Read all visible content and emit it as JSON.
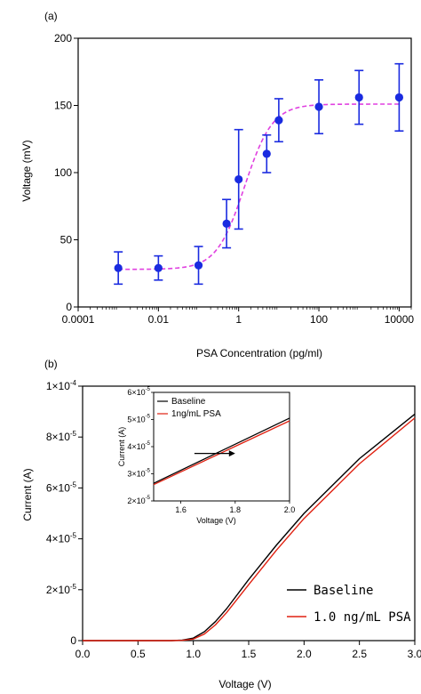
{
  "chart_data": [
    {
      "panel": "(a)",
      "type": "scatter",
      "xlabel": "PSA Concentration (pg/ml)",
      "ylabel": "Voltage (mV)",
      "xscale": "log",
      "xlim": [
        0.0001,
        20000
      ],
      "ylim": [
        0,
        200
      ],
      "xticks": [
        "0.0001",
        "0.01",
        "1",
        "100",
        "10000"
      ],
      "yticks": [
        "0",
        "50",
        "100",
        "150",
        "200"
      ],
      "grid": false,
      "colors": {
        "points": "#1a2be0",
        "fit": "#e040e0"
      },
      "series": [
        {
          "marker": "circle",
          "x": [
            0.001,
            0.01,
            0.1,
            0.5,
            1,
            5,
            10,
            100,
            1000,
            10000
          ],
          "y": [
            29,
            29,
            31,
            62,
            95,
            114,
            139,
            149,
            156,
            156
          ],
          "yerr": [
            12,
            9,
            14,
            18,
            37,
            14,
            16,
            20,
            20,
            25
          ]
        },
        {
          "style": "dashed",
          "fit": "sigmoid",
          "bottom": 28,
          "top": 151,
          "ec50": 1.4,
          "hill": 1.25
        }
      ]
    },
    {
      "panel": "(b)",
      "type": "line",
      "xlabel": "Voltage (V)",
      "ylabel": "Current (A)",
      "xlim": [
        0,
        3.0
      ],
      "ylim": [
        0,
        0.0001
      ],
      "xticks": [
        "0.0",
        "0.5",
        "1.0",
        "1.5",
        "2.0",
        "2.5",
        "3.0"
      ],
      "yticks": [
        "0",
        "2×10",
        "4×10",
        "6×10",
        "8×10",
        "1×10"
      ],
      "ytick_exp": "-5",
      "ytick_exp_top": "-4",
      "grid": false,
      "legend_position": "bottom-right",
      "series": [
        {
          "name": "Baseline",
          "color": "#000000",
          "x": [
            0,
            0.8,
            0.9,
            1.0,
            1.1,
            1.2,
            1.3,
            1.5,
            1.75,
            2.0,
            2.5,
            3.0
          ],
          "y": [
            0,
            0,
            2e-07,
            1e-06,
            3.5e-06,
            7.5e-06,
            1.25e-05,
            2.4e-05,
            3.75e-05,
            5e-05,
            7.15e-05,
            8.9e-05
          ]
        },
        {
          "name": "1.0 ng/mL PSA",
          "color": "#e02010",
          "x": [
            0,
            0.8,
            0.9,
            1.0,
            1.1,
            1.2,
            1.3,
            1.5,
            1.75,
            2.0,
            2.5,
            3.0
          ],
          "y": [
            0,
            0,
            1e-07,
            6e-07,
            2.6e-06,
            6.2e-06,
            1.1e-05,
            2.2e-05,
            3.55e-05,
            4.8e-05,
            6.95e-05,
            8.75e-05
          ]
        }
      ],
      "inset": {
        "xlabel": "Voltage (V)",
        "ylabel": "Current (A)",
        "xlim": [
          1.5,
          2.0
        ],
        "ylim": [
          2e-05,
          6e-05
        ],
        "xticks": [
          "1.6",
          "1.8",
          "2.0"
        ],
        "yticks": [
          "2×10",
          "3×10",
          "4×10",
          "5×10",
          "6×10"
        ],
        "ytick_exp": "-5",
        "legend_position": "top-left",
        "series": [
          {
            "name": "Baseline",
            "color": "#000000",
            "x": [
              1.5,
              2.0
            ],
            "y": [
              2.65e-05,
              5.05e-05
            ]
          },
          {
            "name": "1ng/mL PSA",
            "color": "#e02010",
            "x": [
              1.5,
              2.0
            ],
            "y": [
              2.6e-05,
              4.95e-05
            ]
          }
        ],
        "arrow": {
          "from": [
            1.65,
            3.75e-05
          ],
          "to": [
            1.8,
            3.75e-05
          ]
        }
      }
    }
  ]
}
